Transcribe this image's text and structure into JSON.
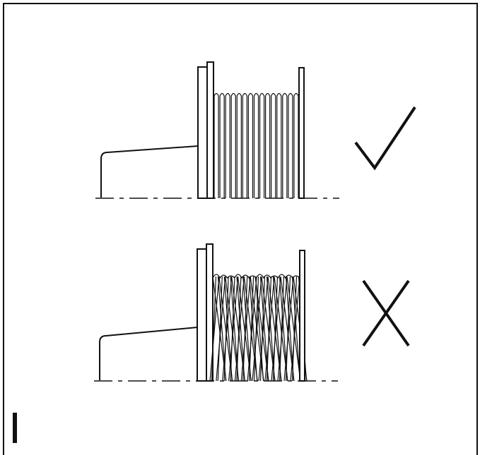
{
  "figure": {
    "colors": {
      "line": "#111111",
      "background": "#ffffff"
    },
    "panels": [
      {
        "id": "correct-winding",
        "winding": "even",
        "verdict_icon": "check-mark-icon"
      },
      {
        "id": "incorrect-winding",
        "winding": "crossed",
        "verdict_icon": "cross-mark-icon"
      }
    ],
    "footer_mark": "bar-marker-icon"
  }
}
